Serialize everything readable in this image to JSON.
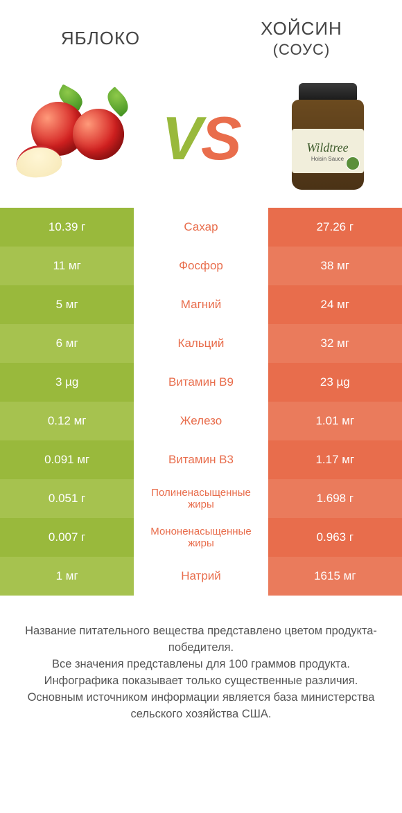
{
  "header": {
    "left_title": "ЯБЛОКО",
    "right_title": "ХОЙСИН",
    "right_subtitle": "(СОУС)"
  },
  "vs": {
    "text_v": "V",
    "text_s": "S",
    "color_v": "#99b93c",
    "color_s": "#e96d4c"
  },
  "jar_label": {
    "brand": "Wildtree",
    "sub": "Hoisin Sauce"
  },
  "colors": {
    "left_dark": "#99b93c",
    "left_light": "#a6c24f",
    "right_dark": "#e86d4c",
    "right_light": "#ea7b5c",
    "mid_text_dark": "#99b93c",
    "mid_text_light": "#e86d4c",
    "footer_text": "#555555"
  },
  "rows": [
    {
      "left": "10.39 г",
      "mid": "Сахар",
      "right": "27.26 г",
      "winner": "right"
    },
    {
      "left": "11 мг",
      "mid": "Фосфор",
      "right": "38 мг",
      "winner": "right"
    },
    {
      "left": "5 мг",
      "mid": "Магний",
      "right": "24 мг",
      "winner": "right"
    },
    {
      "left": "6 мг",
      "mid": "Кальций",
      "right": "32 мг",
      "winner": "right"
    },
    {
      "left": "3 µg",
      "mid": "Витамин B9",
      "right": "23 µg",
      "winner": "right"
    },
    {
      "left": "0.12 мг",
      "mid": "Железо",
      "right": "1.01 мг",
      "winner": "right"
    },
    {
      "left": "0.091 мг",
      "mid": "Витамин B3",
      "right": "1.17 мг",
      "winner": "right"
    },
    {
      "left": "0.051 г",
      "mid": "Полиненасыщенные жиры",
      "right": "1.698 г",
      "winner": "right",
      "small": true
    },
    {
      "left": "0.007 г",
      "mid": "Мононенасыщенные жиры",
      "right": "0.963 г",
      "winner": "right",
      "small": true
    },
    {
      "left": "1 мг",
      "mid": "Натрий",
      "right": "1615 мг",
      "winner": "right"
    }
  ],
  "footer": {
    "l1": "Название питательного вещества представлено цветом продукта-победителя.",
    "l2": "Все значения представлены для 100 граммов продукта.",
    "l3": "Инфографика показывает только существенные различия.",
    "l4": "Основным источником информации является база министерства сельского хозяйства США."
  }
}
